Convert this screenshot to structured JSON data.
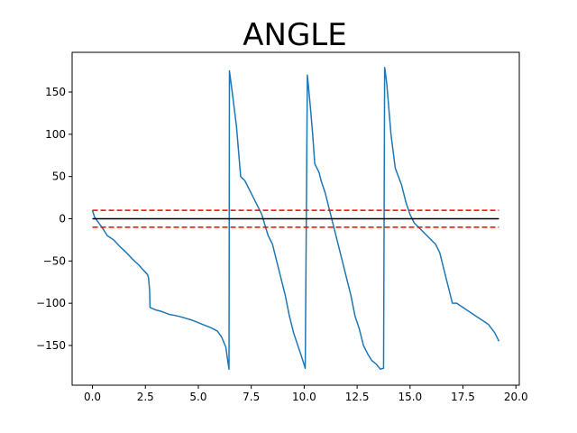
{
  "chart_data": {
    "type": "line",
    "title": "ANGLE",
    "xlabel": "",
    "ylabel": "",
    "xlim": [
      -0.96,
      20.16
    ],
    "ylim": [
      -197,
      197
    ],
    "x_ticks": [
      0,
      2.5,
      5,
      7.5,
      10,
      12.5,
      15,
      17.5,
      20
    ],
    "x_tick_labels": [
      "0.0",
      "2.5",
      "5.0",
      "7.5",
      "10.0",
      "12.5",
      "15.0",
      "17.5",
      "20.0"
    ],
    "y_ticks": [
      -150,
      -100,
      -50,
      0,
      50,
      100,
      150
    ],
    "y_tick_labels": [
      "−150",
      "−100",
      "−50",
      "0",
      "50",
      "100",
      "150"
    ],
    "grid": false,
    "series": [
      {
        "color": "#1f77b4",
        "style": "solid",
        "x": [
          0.0,
          0.1,
          0.3,
          0.5,
          0.7,
          1.0,
          1.3,
          1.6,
          1.9,
          2.2,
          2.45,
          2.6,
          2.65,
          2.7,
          2.72,
          3.0,
          3.3,
          3.6,
          4.0,
          4.3,
          4.7,
          5.0,
          5.3,
          5.6,
          5.9,
          6.1,
          6.3,
          6.4,
          6.45,
          6.47,
          6.6,
          6.7,
          6.8,
          6.9,
          7.0,
          7.2,
          7.4,
          7.6,
          7.8,
          8.0,
          8.2,
          8.3,
          8.5,
          8.7,
          8.9,
          9.1,
          9.3,
          9.5,
          9.7,
          9.9,
          10.05,
          10.15,
          10.17,
          10.3,
          10.4,
          10.5,
          10.6,
          10.7,
          10.8,
          11.0,
          11.2,
          11.4,
          11.6,
          11.8,
          12.0,
          12.2,
          12.4,
          12.6,
          12.8,
          13.0,
          13.2,
          13.4,
          13.6,
          13.75,
          13.8,
          13.82,
          13.9,
          14.0,
          14.1,
          14.2,
          14.3,
          14.6,
          14.8,
          15.0,
          15.2,
          15.4,
          15.6,
          15.8,
          16.0,
          16.2,
          16.4,
          16.6,
          16.8,
          17.0,
          17.2,
          17.5,
          17.8,
          18.1,
          18.4,
          18.7,
          19.0,
          19.2
        ],
        "y": [
          10,
          2,
          -5,
          -12,
          -20,
          -25,
          -33,
          -40,
          -48,
          -55,
          -62,
          -66,
          -70,
          -85,
          -105,
          -108,
          -110,
          -113,
          -115,
          -117,
          -120,
          -123,
          -126,
          -129,
          -133,
          -140,
          -152,
          -170,
          -178,
          175,
          150,
          130,
          110,
          80,
          50,
          45,
          35,
          25,
          15,
          5,
          -12,
          -20,
          -30,
          -50,
          -70,
          -90,
          -115,
          -135,
          -150,
          -165,
          -177,
          170,
          165,
          130,
          100,
          65,
          60,
          55,
          45,
          30,
          10,
          -10,
          -30,
          -50,
          -70,
          -90,
          -115,
          -130,
          -150,
          -160,
          -168,
          -172,
          -178,
          -177,
          179,
          176,
          160,
          130,
          100,
          80,
          60,
          40,
          20,
          5,
          -5,
          -10,
          -15,
          -20,
          -25,
          -30,
          -40,
          -60,
          -80,
          -100,
          -100,
          -105,
          -110,
          -115,
          -120,
          -125,
          -135,
          -145
        ]
      }
    ],
    "reference_lines": [
      {
        "y": 0,
        "color": "#000000",
        "style": "solid"
      },
      {
        "y": 10,
        "color": "#ff0000",
        "style": "dashed"
      },
      {
        "y": -10,
        "color": "#ff0000",
        "style": "dashed"
      }
    ]
  }
}
